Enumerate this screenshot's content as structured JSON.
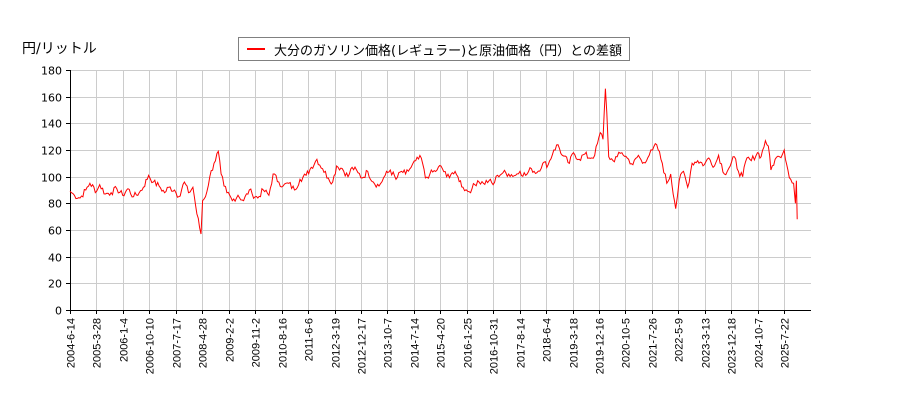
{
  "chart_data": {
    "type": "line",
    "title": "",
    "ylabel": "円/リットル",
    "xlabel": "",
    "ylim": [
      0,
      180
    ],
    "yticks": [
      0,
      20,
      40,
      60,
      80,
      100,
      120,
      140,
      160,
      180
    ],
    "grid": true,
    "legend_position": "top-center",
    "series": [
      {
        "name": "大分のガソリン価格(レギュラー)と原油価格（円）との差額",
        "color": "#ff0000",
        "points": [
          [
            "2004-6-14",
            89
          ],
          [
            "2004-8-1",
            86
          ],
          [
            "2004-10-1",
            84
          ],
          [
            "2004-12-1",
            90
          ],
          [
            "2005-1-15",
            95
          ],
          [
            "2005-3-28",
            89
          ],
          [
            "2005-5-1",
            94
          ],
          [
            "2005-7-1",
            87
          ],
          [
            "2005-9-1",
            88
          ],
          [
            "2005-11-1",
            91
          ],
          [
            "2006-1-4",
            86
          ],
          [
            "2006-3-1",
            91
          ],
          [
            "2006-5-1",
            85
          ],
          [
            "2006-7-1",
            88
          ],
          [
            "2006-8-15",
            92
          ],
          [
            "2006-10-10",
            101
          ],
          [
            "2006-12-1",
            96
          ],
          [
            "2007-2-1",
            93
          ],
          [
            "2007-4-1",
            88
          ],
          [
            "2007-5-15",
            92
          ],
          [
            "2007-7-17",
            90
          ],
          [
            "2007-9-1",
            85
          ],
          [
            "2007-11-1",
            96
          ],
          [
            "2007-12-15",
            88
          ],
          [
            "2008-2-1",
            92
          ],
          [
            "2008-3-15",
            72
          ],
          [
            "2008-4-28",
            57
          ],
          [
            "2008-5-15",
            82
          ],
          [
            "2008-6-15",
            85
          ],
          [
            "2008-8-1",
            100
          ],
          [
            "2008-9-15",
            110
          ],
          [
            "2008-11-1",
            119
          ],
          [
            "2008-12-1",
            102
          ],
          [
            "2009-1-1",
            93
          ],
          [
            "2009-2-2",
            88
          ],
          [
            "2009-4-1",
            82
          ],
          [
            "2009-6-1",
            86
          ],
          [
            "2009-8-1",
            82
          ],
          [
            "2009-10-1",
            90
          ],
          [
            "2009-11-2",
            87
          ],
          [
            "2010-1-1",
            84
          ],
          [
            "2010-3-1",
            90
          ],
          [
            "2010-5-1",
            86
          ],
          [
            "2010-6-15",
            102
          ],
          [
            "2010-8-16",
            96
          ],
          [
            "2010-10-1",
            93
          ],
          [
            "2010-12-1",
            95
          ],
          [
            "2011-2-1",
            90
          ],
          [
            "2011-4-1",
            98
          ],
          [
            "2011-6-6",
            101
          ],
          [
            "2011-8-1",
            107
          ],
          [
            "2011-10-1",
            113
          ],
          [
            "2011-12-1",
            106
          ],
          [
            "2012-2-1",
            99
          ],
          [
            "2012-3-19",
            96
          ],
          [
            "2012-5-1",
            108
          ],
          [
            "2012-7-1",
            106
          ],
          [
            "2012-9-1",
            100
          ],
          [
            "2012-10-15",
            107
          ],
          [
            "2012-12-17",
            103
          ],
          [
            "2013-2-1",
            99
          ],
          [
            "2013-4-1",
            104
          ],
          [
            "2013-6-1",
            96
          ],
          [
            "2013-8-1",
            93
          ],
          [
            "2013-10-7",
            101
          ],
          [
            "2013-12-1",
            105
          ],
          [
            "2014-2-1",
            98
          ],
          [
            "2014-4-1",
            104
          ],
          [
            "2014-5-15",
            102
          ],
          [
            "2014-7-14",
            107
          ],
          [
            "2014-9-1",
            112
          ],
          [
            "2014-11-1",
            114
          ],
          [
            "2014-12-15",
            99
          ],
          [
            "2015-2-1",
            102
          ],
          [
            "2015-4-20",
            105
          ],
          [
            "2015-6-1",
            108
          ],
          [
            "2015-8-1",
            100
          ],
          [
            "2015-10-1",
            103
          ],
          [
            "2015-12-1",
            100
          ],
          [
            "2016-1-25",
            92
          ],
          [
            "2016-3-15",
            89
          ],
          [
            "2016-5-1",
            91
          ],
          [
            "2016-7-1",
            97
          ],
          [
            "2016-9-1",
            95
          ],
          [
            "2016-10-31",
            97
          ],
          [
            "2016-12-15",
            94
          ],
          [
            "2017-2-1",
            101
          ],
          [
            "2017-4-1",
            103
          ],
          [
            "2017-6-1",
            102
          ],
          [
            "2017-8-14",
            101
          ],
          [
            "2017-10-1",
            104
          ],
          [
            "2017-12-1",
            101
          ],
          [
            "2018-2-1",
            106
          ],
          [
            "2018-4-1",
            103
          ],
          [
            "2018-6-4",
            110
          ],
          [
            "2018-8-1",
            109
          ],
          [
            "2018-10-1",
            120
          ],
          [
            "2018-11-15",
            124
          ],
          [
            "2019-1-1",
            116
          ],
          [
            "2019-3-18",
            110
          ],
          [
            "2019-5-1",
            118
          ],
          [
            "2019-7-1",
            113
          ],
          [
            "2019-9-1",
            117
          ],
          [
            "2019-10-15",
            114
          ],
          [
            "2019-12-16",
            116
          ],
          [
            "2020-1-15",
            125
          ],
          [
            "2020-2-15",
            133
          ],
          [
            "2020-3-15",
            128
          ],
          [
            "2020-4-10",
            166
          ],
          [
            "2020-4-25",
            148
          ],
          [
            "2020-5-15",
            115
          ],
          [
            "2020-7-1",
            112
          ],
          [
            "2020-8-15",
            115
          ],
          [
            "2020-10-5",
            118
          ],
          [
            "2020-12-1",
            114
          ],
          [
            "2021-2-1",
            109
          ],
          [
            "2021-4-1",
            116
          ],
          [
            "2021-5-15",
            110
          ],
          [
            "2021-7-26",
            116
          ],
          [
            "2021-9-1",
            120
          ],
          [
            "2021-10-15",
            124
          ],
          [
            "2021-12-15",
            110
          ],
          [
            "2022-2-1",
            95
          ],
          [
            "2022-3-15",
            102
          ],
          [
            "2022-5-9",
            76
          ],
          [
            "2022-6-15",
            97
          ],
          [
            "2022-8-1",
            104
          ],
          [
            "2022-9-15",
            92
          ],
          [
            "2022-11-1",
            110
          ],
          [
            "2023-1-1",
            112
          ],
          [
            "2023-3-13",
            109
          ],
          [
            "2023-5-1",
            114
          ],
          [
            "2023-7-1",
            108
          ],
          [
            "2023-8-15",
            116
          ],
          [
            "2023-10-15",
            102
          ],
          [
            "2023-12-18",
            108
          ],
          [
            "2024-2-1",
            115
          ],
          [
            "2024-3-15",
            104
          ],
          [
            "2024-5-1",
            100
          ],
          [
            "2024-6-15",
            114
          ],
          [
            "2024-8-1",
            112
          ],
          [
            "2024-10-7",
            118
          ],
          [
            "2024-11-15",
            115
          ],
          [
            "2025-1-1",
            127
          ],
          [
            "2025-2-1",
            123
          ],
          [
            "2025-3-1",
            105
          ],
          [
            "2025-4-15",
            113
          ],
          [
            "2025-6-1",
            115
          ],
          [
            "2025-7-22",
            120
          ],
          [
            "2025-9-1",
            105
          ],
          [
            "2025-10-1",
            98
          ],
          [
            "2025-11-1",
            95
          ],
          [
            "2025-11-20",
            80
          ],
          [
            "2025-12-1",
            97
          ],
          [
            "2025-12-10",
            68
          ]
        ]
      }
    ],
    "x_tick_labels": [
      "2004-6-14",
      "2005-3-28",
      "2006-1-4",
      "2006-10-10",
      "2007-7-17",
      "2008-4-28",
      "2009-2-2",
      "2009-11-2",
      "2010-8-16",
      "2011-6-6",
      "2012-3-19",
      "2012-12-17",
      "2013-10-7",
      "2014-7-14",
      "2015-4-20",
      "2016-1-25",
      "2016-10-31",
      "2017-8-14",
      "2018-6-4",
      "2019-3-18",
      "2019-12-16",
      "2020-10-5",
      "2021-7-26",
      "2022-5-9",
      "2023-3-13",
      "2023-12-18",
      "2024-10-7",
      "2025-7-22"
    ]
  },
  "header": {
    "unit_label": "円/リットル"
  },
  "legend": {
    "label": "大分のガソリン価格(レギュラー)と原油価格（円）との差額",
    "color": "#ff0000"
  },
  "colors": {
    "line": "#ff0000",
    "grid": "#cccccc",
    "axis": "#000000"
  }
}
